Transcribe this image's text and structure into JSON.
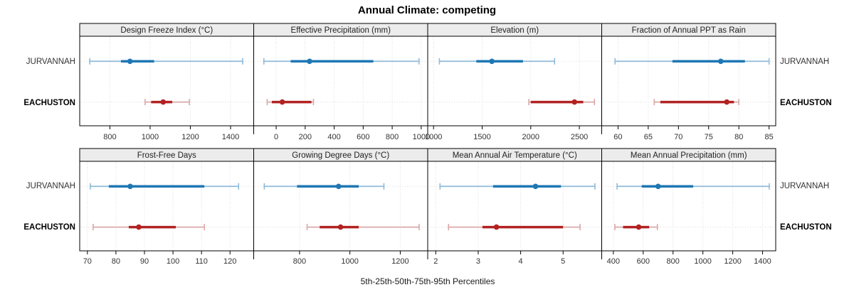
{
  "chart_data": {
    "type": "scatter",
    "subtype": "percentile-interval-dotplot",
    "title": "Annual Climate: competing",
    "xlabel": "5th-25th-50th-75th-95th Percentiles",
    "percentile_labels": [
      "5th",
      "25th",
      "50th",
      "75th",
      "95th"
    ],
    "groups": [
      "JURVANNAH",
      "EACHUSTON"
    ],
    "legend_position": "none",
    "grid": "dotted",
    "colors": {
      "jurvannah_main": "#1f77b4",
      "jurvannah_light": "#8fbbd9",
      "eachuston_main": "#b22222",
      "eachuston_light": "#dba8a8",
      "strip_bg": "#ececec",
      "panel_border": "#000000",
      "grid_line": "#d8d8d8",
      "tick_text": "#333333"
    },
    "panels": [
      {
        "title": "Design Freeze Index (°C)",
        "row": 0,
        "col": 0,
        "xlim": [
          650,
          1515
        ],
        "ticks": [
          800,
          1000,
          1200,
          1400
        ],
        "series": {
          "JURVANNAH": [
            700,
            855,
            900,
            1020,
            1460
          ],
          "EACHUSTON": [
            975,
            1005,
            1065,
            1110,
            1195
          ]
        }
      },
      {
        "title": "Effective Precipitation (mm)",
        "row": 0,
        "col": 1,
        "xlim": [
          -155,
          1045
        ],
        "ticks": [
          0,
          200,
          400,
          600,
          800,
          1000
        ],
        "series": {
          "JURVANNAH": [
            -85,
            100,
            230,
            670,
            985
          ],
          "EACHUSTON": [
            -62,
            -30,
            42,
            243,
            257
          ]
        }
      },
      {
        "title": "Elevation (m)",
        "row": 0,
        "col": 2,
        "xlim": [
          940,
          2730
        ],
        "ticks": [
          1000,
          1500,
          2000,
          2500
        ],
        "series": {
          "JURVANNAH": [
            1060,
            1440,
            1600,
            1920,
            2245
          ],
          "EACHUSTON": [
            1980,
            2000,
            2450,
            2540,
            2655
          ]
        }
      },
      {
        "title": "Fraction of Annual PPT as Rain",
        "row": 0,
        "col": 3,
        "xlim": [
          57.3,
          86.1
        ],
        "ticks": [
          60,
          65,
          70,
          75,
          80,
          85
        ],
        "series": {
          "JURVANNAH": [
            59.5,
            69,
            77,
            81,
            85
          ],
          "EACHUSTON": [
            66,
            67,
            78,
            79.2,
            80
          ]
        }
      },
      {
        "title": "Frost-Free Days",
        "row": 1,
        "col": 0,
        "xlim": [
          67.3,
          128.3
        ],
        "ticks": [
          70,
          80,
          90,
          100,
          110,
          120
        ],
        "series": {
          "JURVANNAH": [
            71,
            77.5,
            85,
            111,
            123
          ],
          "EACHUSTON": [
            72,
            84.5,
            88,
            101,
            111
          ]
        }
      },
      {
        "title": "Growing Degree Days (°C)",
        "row": 1,
        "col": 1,
        "xlim": [
          618,
          1309
        ],
        "ticks": [
          800,
          1000,
          1200
        ],
        "series": {
          "JURVANNAH": [
            660,
            790,
            955,
            1035,
            1135
          ],
          "EACHUSTON": [
            830,
            880,
            963,
            1035,
            1275
          ]
        }
      },
      {
        "title": "Mean Annual Air Temperature (°C)",
        "row": 1,
        "col": 2,
        "xlim": [
          1.81,
          5.91
        ],
        "ticks": [
          2,
          3,
          4,
          5
        ],
        "series": {
          "JURVANNAH": [
            2.1,
            3.35,
            4.35,
            4.95,
            5.75
          ],
          "EACHUSTON": [
            2.3,
            3.1,
            3.43,
            5.0,
            5.4
          ]
        }
      },
      {
        "title": "Mean Annual Precipitation (mm)",
        "row": 1,
        "col": 3,
        "xlim": [
          322,
          1488
        ],
        "ticks": [
          400,
          600,
          800,
          1000,
          1200,
          1400
        ],
        "series": {
          "JURVANNAH": [
            425,
            590,
            700,
            935,
            1445
          ],
          "EACHUSTON": [
            410,
            465,
            570,
            640,
            695
          ]
        }
      }
    ]
  }
}
